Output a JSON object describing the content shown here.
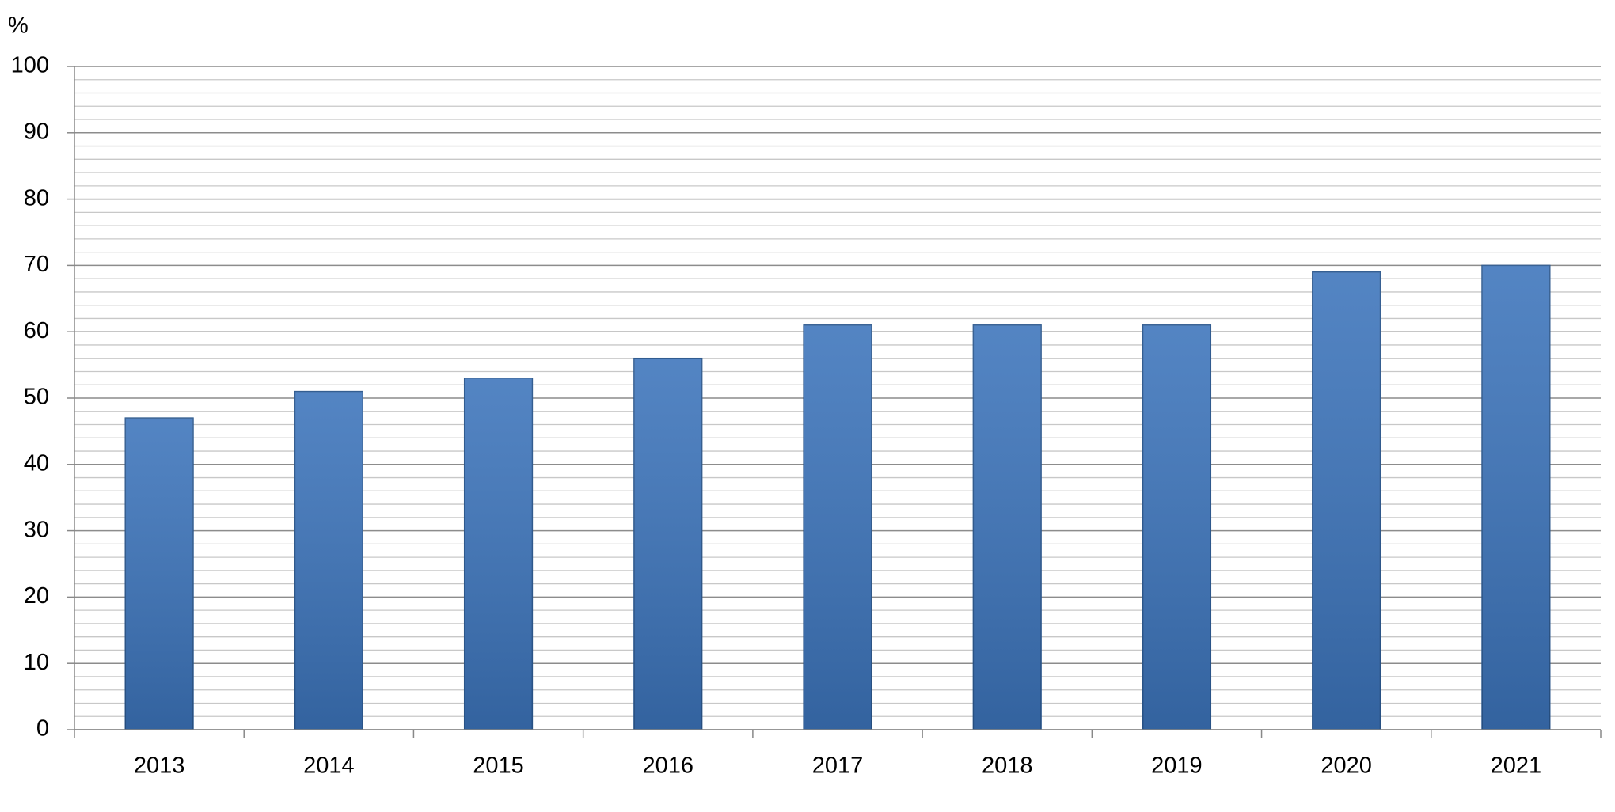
{
  "chart_data": {
    "type": "bar",
    "y_axis_label": "%",
    "categories": [
      "2013",
      "2014",
      "2015",
      "2016",
      "2017",
      "2018",
      "2019",
      "2020",
      "2021"
    ],
    "values": [
      47,
      51,
      53,
      56,
      61,
      61,
      61,
      69,
      70
    ],
    "color": "#3c74bb",
    "ylim": [
      0,
      100
    ],
    "yticks": [
      0,
      10,
      20,
      30,
      40,
      50,
      60,
      70,
      80,
      90,
      100
    ],
    "yminorticks": [
      2,
      4,
      6,
      8,
      12,
      14,
      16,
      18,
      22,
      24,
      26,
      28,
      32,
      34,
      36,
      38,
      42,
      44,
      46,
      48,
      52,
      54,
      56,
      58,
      62,
      64,
      66,
      68,
      72,
      74,
      76,
      78,
      82,
      84,
      86,
      88,
      92,
      94,
      96,
      98
    ],
    "grid": true
  }
}
